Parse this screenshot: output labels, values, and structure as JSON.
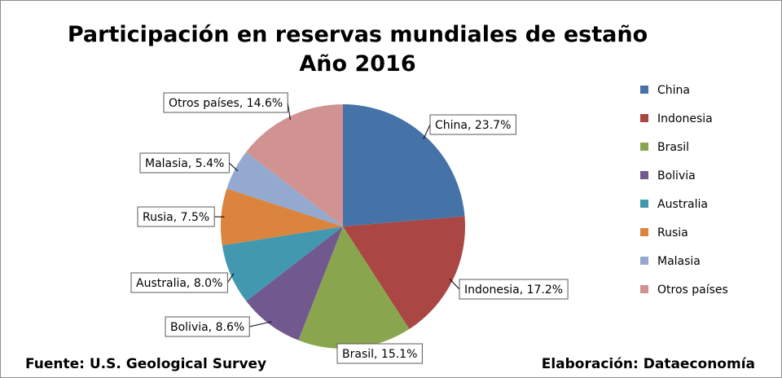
{
  "chart_data": {
    "type": "pie",
    "title": "Participación en reservas mundiales de estaño",
    "subtitle": "Año 2016",
    "unit": "%",
    "slices": [
      {
        "name": "China",
        "value": 23.7,
        "label": "China, 23.7%",
        "color": "#4572A7"
      },
      {
        "name": "Indonesia",
        "value": 17.2,
        "label": "Indonesia, 17.2%",
        "color": "#AA4643"
      },
      {
        "name": "Brasil",
        "value": 15.1,
        "label": "Brasil, 15.1%",
        "color": "#89A54E"
      },
      {
        "name": "Bolivia",
        "value": 8.6,
        "label": "Bolivia, 8.6%",
        "color": "#71588F"
      },
      {
        "name": "Australia",
        "value": 8.0,
        "label": "Australia, 8.0%",
        "color": "#4198AF"
      },
      {
        "name": "Rusia",
        "value": 7.5,
        "label": "Rusia, 7.5%",
        "color": "#DB843D"
      },
      {
        "name": "Malasia",
        "value": 5.4,
        "label": "Malasia, 5.4%",
        "color": "#93A9CF"
      },
      {
        "name": "Otros países",
        "value": 14.6,
        "label": "Otros países, 14.6%",
        "color": "#D19392"
      }
    ],
    "legend_position": "right"
  },
  "footer": {
    "source": "Fuente: U.S. Geological Survey",
    "credit": "Elaboración: Dataeconomía"
  }
}
